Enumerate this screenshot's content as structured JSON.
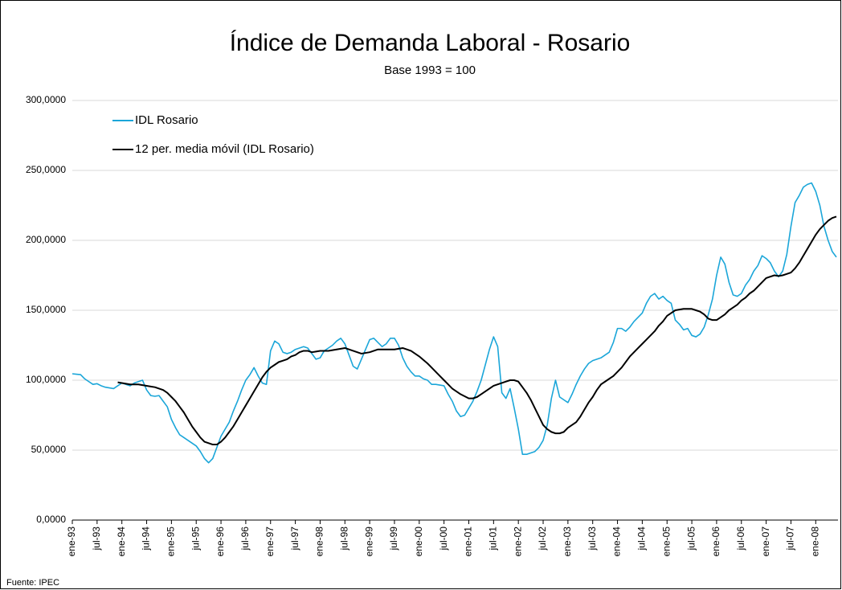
{
  "chart_data": {
    "type": "line",
    "title": "Índice de Demanda Laboral - Rosario",
    "subtitle": "Base 1993 = 100",
    "source": "Fuente: IPEC",
    "categories": [
      "ene-93",
      null,
      null,
      null,
      null,
      null,
      "jul-93",
      null,
      null,
      null,
      null,
      null,
      "ene-94",
      null,
      null,
      null,
      null,
      null,
      "jul-94",
      null,
      null,
      null,
      null,
      null,
      "ene-95",
      null,
      null,
      null,
      null,
      null,
      "jul-95",
      null,
      null,
      null,
      null,
      null,
      "ene-96",
      null,
      null,
      null,
      null,
      null,
      "jul-96",
      null,
      null,
      null,
      null,
      null,
      "ene-97",
      null,
      null,
      null,
      null,
      null,
      "jul-97",
      null,
      null,
      null,
      null,
      null,
      "ene-98",
      null,
      null,
      null,
      null,
      null,
      "jul-98",
      null,
      null,
      null,
      null,
      null,
      "ene-99",
      null,
      null,
      null,
      null,
      null,
      "jul-99",
      null,
      null,
      null,
      null,
      null,
      "ene-00",
      null,
      null,
      null,
      null,
      null,
      "jul-00",
      null,
      null,
      null,
      null,
      null,
      "ene-01",
      null,
      null,
      null,
      null,
      null,
      "jul-01",
      null,
      null,
      null,
      null,
      null,
      "ene-02",
      null,
      null,
      null,
      null,
      null,
      "jul-02",
      null,
      null,
      null,
      null,
      null,
      "ene-03",
      null,
      null,
      null,
      null,
      null,
      "jul-03",
      null,
      null,
      null,
      null,
      null,
      "ene-04",
      null,
      null,
      null,
      null,
      null,
      "jul-04",
      null,
      null,
      null,
      null,
      null,
      "ene-05",
      null,
      null,
      null,
      null,
      null,
      "jul-05",
      null,
      null,
      null,
      null,
      null,
      "ene-06",
      null,
      null,
      null,
      null,
      null,
      "jul-06",
      null,
      null,
      null,
      null,
      null,
      "ene-07",
      null,
      null,
      null,
      null,
      null,
      "jul-07",
      null,
      null,
      null,
      null,
      null,
      "ene-08",
      null,
      null,
      null,
      null,
      null
    ],
    "series": [
      {
        "name": "IDL Rosario",
        "color": "#1ba6d9",
        "values": [
          104.6,
          104.3,
          104,
          101,
          99,
          97,
          97.5,
          96,
          95,
          94.5,
          94,
          96,
          98,
          97,
          96,
          98,
          99,
          100,
          93,
          89,
          88.5,
          89,
          85,
          81,
          72,
          66,
          61,
          59,
          57,
          55,
          53,
          49,
          44,
          41,
          44,
          52,
          60,
          65,
          70,
          78,
          85,
          93,
          100,
          104,
          109,
          103,
          98,
          97,
          121,
          128,
          126,
          120,
          119,
          120,
          122,
          123,
          124,
          123,
          119,
          115,
          116,
          121,
          123,
          125,
          128,
          130,
          126,
          118,
          110,
          108,
          115,
          122,
          129,
          130,
          127,
          124,
          126,
          130,
          130,
          125,
          116,
          110,
          106,
          103,
          103,
          101,
          100,
          97,
          97,
          96.5,
          96,
          90,
          85,
          78,
          74,
          75,
          80,
          85,
          92,
          100,
          111,
          122,
          131,
          124,
          91,
          87,
          94,
          80,
          65,
          47,
          47,
          48,
          49,
          52,
          57,
          68,
          87,
          100,
          88,
          86,
          84,
          90,
          97,
          103,
          108,
          112,
          114,
          115,
          116,
          118,
          120,
          127,
          137,
          137,
          135,
          138,
          142,
          145,
          148,
          155,
          160,
          162,
          158,
          160,
          157,
          155,
          143,
          140,
          136,
          137,
          132,
          131,
          133,
          138,
          147,
          158,
          175,
          188,
          183,
          170,
          161,
          160,
          162,
          168,
          172,
          178,
          182,
          189,
          187,
          184,
          178,
          174,
          178,
          190,
          210,
          227,
          232,
          238,
          240,
          241,
          235,
          225,
          210,
          200,
          192,
          188
        ]
      },
      {
        "name": "12 per. media móvil (IDL Rosario)",
        "color": "#000000",
        "values": [
          null,
          null,
          null,
          null,
          null,
          null,
          null,
          null,
          null,
          null,
          null,
          98.5,
          98,
          97.5,
          97,
          97,
          97,
          96.5,
          96,
          95.5,
          95,
          94,
          93,
          91,
          88,
          85,
          81,
          77,
          72,
          67,
          63,
          59,
          56,
          55,
          54,
          54,
          56,
          59,
          63,
          67,
          72,
          77,
          82,
          87,
          92,
          97,
          102,
          106,
          109,
          111,
          113,
          114,
          115,
          117,
          118,
          120,
          121,
          121,
          120,
          120.5,
          121,
          121,
          121,
          121.5,
          122,
          122.5,
          123,
          122,
          121,
          120,
          119,
          119.5,
          120,
          121,
          122,
          122,
          122,
          122,
          122,
          122.5,
          123,
          122,
          121,
          119,
          117,
          114.5,
          112,
          109,
          106,
          103,
          100,
          97,
          94,
          92,
          90,
          88.5,
          87,
          87,
          88,
          90,
          92,
          94,
          96,
          97,
          98,
          99,
          100,
          100,
          99,
          95,
          91,
          86,
          80,
          74,
          68,
          65,
          63,
          62,
          62,
          63,
          66,
          68,
          70,
          74,
          79,
          84,
          88,
          93,
          97,
          99,
          101,
          103,
          106,
          109,
          113,
          117,
          120,
          123,
          126,
          129,
          132,
          135,
          139,
          142,
          146,
          148,
          150,
          150.5,
          151,
          151,
          151,
          150,
          149,
          147,
          144,
          143,
          143,
          145,
          147,
          150,
          152,
          154,
          157,
          159,
          162,
          164,
          167,
          170,
          173,
          174,
          175,
          174.5,
          175,
          176,
          177,
          180,
          184,
          189,
          194,
          199,
          204,
          208,
          211,
          214,
          216,
          217
        ]
      }
    ],
    "ylim": [
      0,
      300
    ],
    "yticks": [
      {
        "value": 0,
        "label": "0,0000"
      },
      {
        "value": 50,
        "label": "50,0000"
      },
      {
        "value": 100,
        "label": "100,0000"
      },
      {
        "value": 150,
        "label": "150,0000"
      },
      {
        "value": 200,
        "label": "200,0000"
      },
      {
        "value": 250,
        "label": "250,0000"
      },
      {
        "value": 300,
        "label": "300,0000"
      }
    ],
    "grid": true,
    "legend": "top-left"
  }
}
